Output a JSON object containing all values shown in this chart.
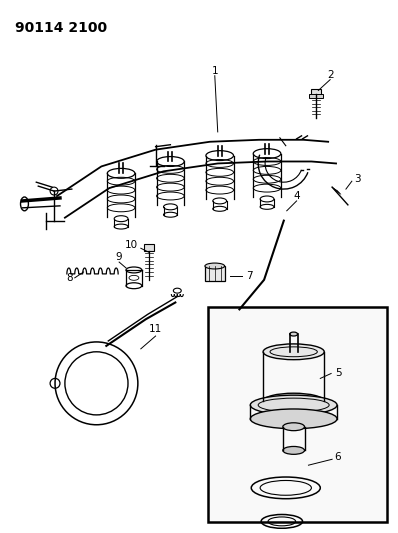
{
  "title_code": "90114 2100",
  "bg_color": "#ffffff",
  "line_color": "#000000",
  "fig_width": 3.98,
  "fig_height": 5.33,
  "dpi": 100,
  "title_fontsize": 10,
  "label_fontsize": 7.5
}
